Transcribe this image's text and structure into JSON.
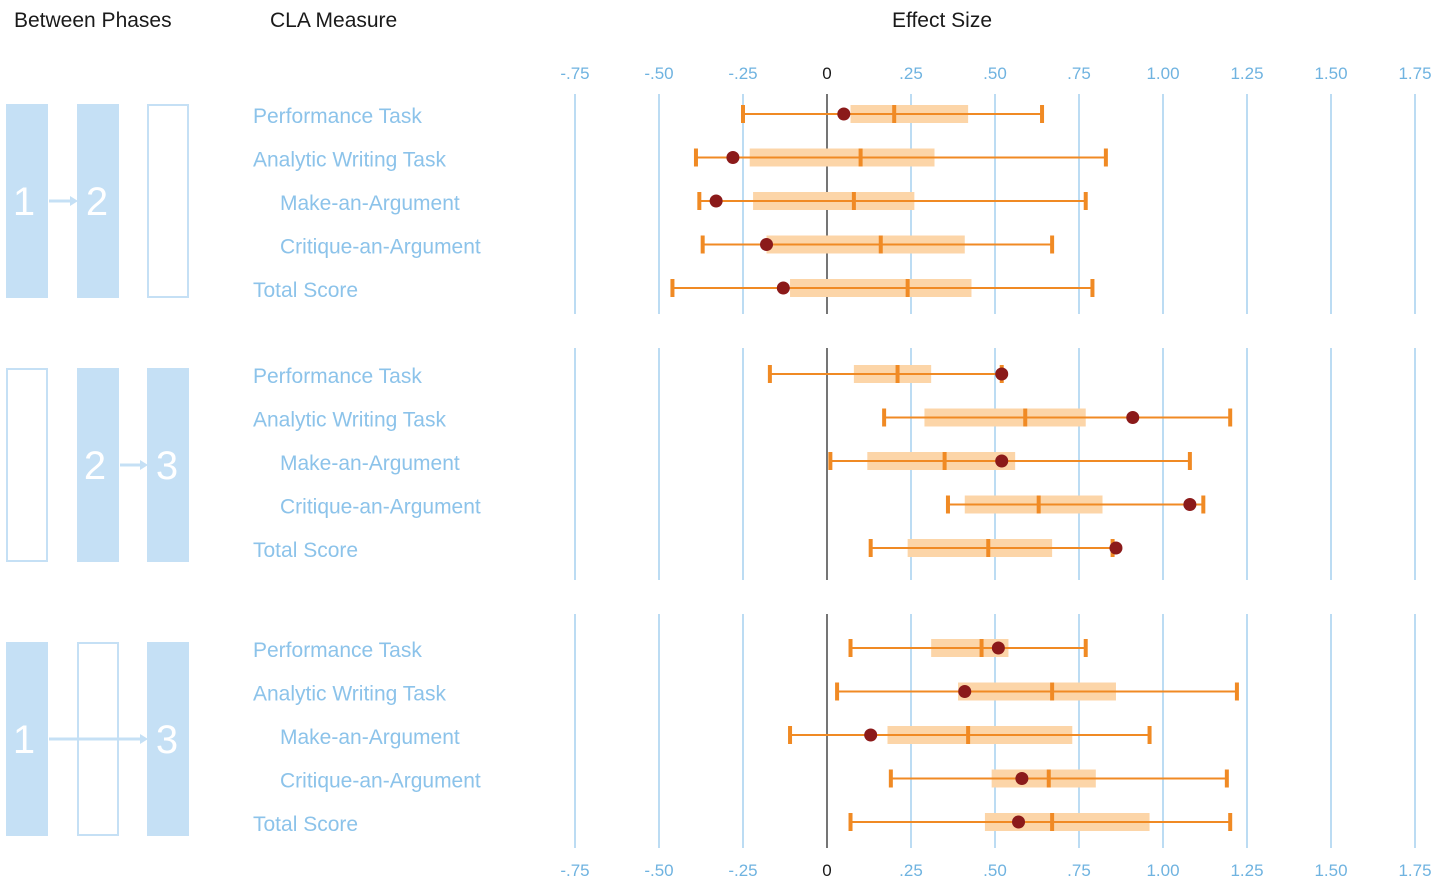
{
  "headers": {
    "between_phases": "Between Phases",
    "cla_measure": "CLA Measure",
    "effect_size": "Effect Size"
  },
  "colors": {
    "phase_fill": "#c5e0f5",
    "phase_outline": "#c5e0f5",
    "grid": "#9fcdee",
    "zero_line": "#1a1a1a",
    "range": "#f08a24",
    "iqr": "#fcd5a8",
    "point": "#8b1a1a",
    "label": "#8cc3ea"
  },
  "chart_data": {
    "type": "forest",
    "x_label": "Effect Size",
    "x_ticks": [
      {
        "value": -0.75,
        "label": "-.75"
      },
      {
        "value": -0.5,
        "label": "-.50"
      },
      {
        "value": -0.25,
        "label": "-.25"
      },
      {
        "value": 0,
        "label": "0"
      },
      {
        "value": 0.25,
        "label": ".25"
      },
      {
        "value": 0.5,
        "label": ".50"
      },
      {
        "value": 0.75,
        "label": ".75"
      },
      {
        "value": 1.0,
        "label": "1.00"
      },
      {
        "value": 1.25,
        "label": "1.25"
      },
      {
        "value": 1.5,
        "label": "1.50"
      },
      {
        "value": 1.75,
        "label": "1.75"
      }
    ],
    "xlim": [
      -0.75,
      1.75
    ],
    "panels": [
      {
        "phase_label": "1 → 2",
        "phase_from": "1",
        "phase_to": "2",
        "boxes": [
          "filled",
          "filled",
          "outline"
        ],
        "rows": [
          {
            "label": "Performance Task",
            "indent": false,
            "min": -0.25,
            "q1": 0.07,
            "median": 0.2,
            "q3": 0.42,
            "max": 0.64,
            "point": 0.05
          },
          {
            "label": "Analytic Writing Task",
            "indent": false,
            "min": -0.39,
            "q1": -0.23,
            "median": 0.1,
            "q3": 0.32,
            "max": 0.83,
            "point": -0.28
          },
          {
            "label": "Make-an-Argument",
            "indent": true,
            "min": -0.38,
            "q1": -0.22,
            "median": 0.08,
            "q3": 0.26,
            "max": 0.77,
            "point": -0.33
          },
          {
            "label": "Critique-an-Argument",
            "indent": true,
            "min": -0.37,
            "q1": -0.18,
            "median": 0.16,
            "q3": 0.41,
            "max": 0.67,
            "point": -0.18
          },
          {
            "label": "Total Score",
            "indent": false,
            "min": -0.46,
            "q1": -0.11,
            "median": 0.24,
            "q3": 0.43,
            "max": 0.79,
            "point": -0.13
          }
        ]
      },
      {
        "phase_label": "2 → 3",
        "phase_from": "2",
        "phase_to": "3",
        "boxes": [
          "outline",
          "filled",
          "filled"
        ],
        "rows": [
          {
            "label": "Performance Task",
            "indent": false,
            "min": -0.17,
            "q1": 0.08,
            "median": 0.21,
            "q3": 0.31,
            "max": 0.52,
            "point": 0.52
          },
          {
            "label": "Analytic Writing Task",
            "indent": false,
            "min": 0.17,
            "q1": 0.29,
            "median": 0.59,
            "q3": 0.77,
            "max": 1.2,
            "point": 0.91
          },
          {
            "label": "Make-an-Argument",
            "indent": true,
            "min": 0.01,
            "q1": 0.12,
            "median": 0.35,
            "q3": 0.56,
            "max": 1.08,
            "point": 0.52
          },
          {
            "label": "Critique-an-Argument",
            "indent": true,
            "min": 0.36,
            "q1": 0.41,
            "median": 0.63,
            "q3": 0.82,
            "max": 1.12,
            "point": 1.08
          },
          {
            "label": "Total Score",
            "indent": false,
            "min": 0.13,
            "q1": 0.24,
            "median": 0.48,
            "q3": 0.67,
            "max": 0.85,
            "point": 0.86
          }
        ]
      },
      {
        "phase_label": "1 → 3",
        "phase_from": "1",
        "phase_to": "3",
        "boxes": [
          "filled",
          "outline",
          "filled"
        ],
        "rows": [
          {
            "label": "Performance Task",
            "indent": false,
            "min": 0.07,
            "q1": 0.31,
            "median": 0.46,
            "q3": 0.54,
            "max": 0.77,
            "point": 0.51
          },
          {
            "label": "Analytic Writing Task",
            "indent": false,
            "min": 0.03,
            "q1": 0.39,
            "median": 0.67,
            "q3": 0.86,
            "max": 1.22,
            "point": 0.41
          },
          {
            "label": "Make-an-Argument",
            "indent": true,
            "min": -0.11,
            "q1": 0.18,
            "median": 0.42,
            "q3": 0.73,
            "max": 0.96,
            "point": 0.13
          },
          {
            "label": "Critique-an-Argument",
            "indent": true,
            "min": 0.19,
            "q1": 0.49,
            "median": 0.66,
            "q3": 0.8,
            "max": 1.19,
            "point": 0.58
          },
          {
            "label": "Total Score",
            "indent": false,
            "min": 0.07,
            "q1": 0.47,
            "median": 0.67,
            "q3": 0.96,
            "max": 1.2,
            "point": 0.57
          }
        ]
      }
    ]
  }
}
